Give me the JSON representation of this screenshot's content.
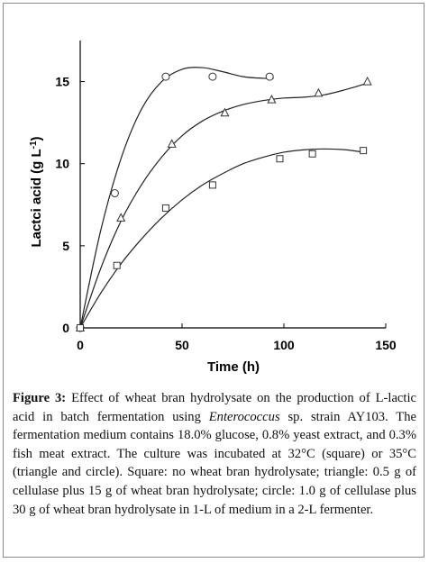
{
  "chart_data": {
    "type": "scatter",
    "xlabel": "Time (h)",
    "ylabel_main": "Lactci acid (g L",
    "ylabel_sup": "-1",
    "ylabel_close": ")",
    "xlim": [
      0,
      150
    ],
    "ylim": [
      0,
      17.5
    ],
    "xticks": [
      0,
      50,
      100,
      150
    ],
    "yticks": [
      0,
      5,
      10,
      15
    ],
    "grid": false,
    "legend": "none",
    "series": [
      {
        "marker": "circle",
        "points": [
          [
            0,
            0
          ],
          [
            17,
            8.2
          ],
          [
            42,
            15.3
          ],
          [
            65,
            15.3
          ],
          [
            93,
            15.3
          ]
        ],
        "curve": [
          [
            0,
            0
          ],
          [
            10,
            5.9
          ],
          [
            20,
            10.3
          ],
          [
            30,
            13.3
          ],
          [
            40,
            15.0
          ],
          [
            50,
            15.75
          ],
          [
            60,
            15.85
          ],
          [
            70,
            15.6
          ],
          [
            80,
            15.3
          ],
          [
            90,
            15.2
          ],
          [
            95,
            15.2
          ]
        ]
      },
      {
        "marker": "triangle",
        "points": [
          [
            0,
            0
          ],
          [
            20,
            6.7
          ],
          [
            45,
            11.2
          ],
          [
            71,
            13.1
          ],
          [
            94,
            13.9
          ],
          [
            117,
            14.3
          ],
          [
            141,
            15.0
          ]
        ],
        "curve": [
          [
            0,
            0
          ],
          [
            10,
            3.6
          ],
          [
            20,
            6.5
          ],
          [
            30,
            8.7
          ],
          [
            40,
            10.4
          ],
          [
            50,
            11.7
          ],
          [
            60,
            12.6
          ],
          [
            70,
            13.2
          ],
          [
            80,
            13.6
          ],
          [
            90,
            13.85
          ],
          [
            100,
            14.0
          ],
          [
            110,
            14.05
          ],
          [
            120,
            14.2
          ],
          [
            130,
            14.5
          ],
          [
            141,
            14.9
          ]
        ]
      },
      {
        "marker": "square",
        "points": [
          [
            0,
            0
          ],
          [
            18,
            3.8
          ],
          [
            42,
            7.3
          ],
          [
            65,
            8.7
          ],
          [
            98,
            10.3
          ],
          [
            114,
            10.6
          ],
          [
            139,
            10.8
          ]
        ],
        "curve": [
          [
            0,
            0
          ],
          [
            10,
            2.1
          ],
          [
            20,
            3.9
          ],
          [
            30,
            5.4
          ],
          [
            40,
            6.7
          ],
          [
            50,
            7.8
          ],
          [
            60,
            8.7
          ],
          [
            70,
            9.4
          ],
          [
            80,
            10.0
          ],
          [
            90,
            10.4
          ],
          [
            100,
            10.7
          ],
          [
            110,
            10.85
          ],
          [
            120,
            10.9
          ],
          [
            130,
            10.85
          ],
          [
            139,
            10.7
          ]
        ]
      }
    ]
  },
  "caption": {
    "label": "Figure 3:",
    "text_before": " Effect of wheat bran hydrolysate on the production of L-lactic acid in batch fermentation using ",
    "organism": "Enterococcus",
    "text_after": " sp. strain AY103. The fermentation medium contains 18.0% glucose, 0.8% yeast extract, and 0.3% fish meat extract. The culture was incubated at 32°C (square) or 35°C (triangle and circle). Square: no wheat bran hydrolysate; triangle: 0.5 g of cellulase plus 15 g of wheat bran hydrolysate; circle: 1.0 g of cellulase plus 30 g of wheat bran hydrolysate in 1-L of medium in a 2-L fermenter."
  }
}
